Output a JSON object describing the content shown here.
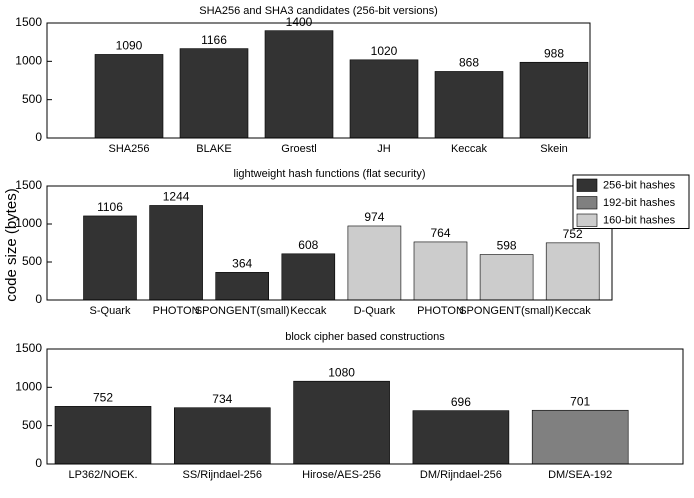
{
  "chart_data": [
    {
      "type": "bar",
      "title": "SHA256 and SHA3 candidates (256-bit versions)",
      "categories": [
        "SHA256",
        "BLAKE",
        "Groestl",
        "JH",
        "Keccak",
        "Skein"
      ],
      "values": [
        1090,
        1166,
        1400,
        1020,
        868,
        988
      ],
      "colors": [
        "#333333",
        "#333333",
        "#333333",
        "#333333",
        "#333333",
        "#333333"
      ],
      "ylim": [
        0,
        1500
      ],
      "yticks": [
        0,
        500,
        1000,
        1500
      ]
    },
    {
      "type": "grouped-bar",
      "title": "lightweight hash functions (flat security)",
      "ylabel": "code size (bytes)",
      "categories": [
        "S-Quark",
        "PHOTON",
        "SPONGENT(small)",
        "Keccak",
        "D-Quark",
        "PHOTON",
        "SPONGENT(small)",
        "Keccak"
      ],
      "series": [
        {
          "name": "256-bit hashes",
          "color": "#333333",
          "values": [
            1106,
            1244,
            364,
            608,
            null,
            null,
            null,
            null
          ]
        },
        {
          "name": "192-bit hashes",
          "color": "#808080",
          "values": [
            null,
            null,
            null,
            null,
            null,
            null,
            null,
            null
          ]
        },
        {
          "name": "160-bit hashes",
          "color": "#cccccc",
          "values": [
            null,
            null,
            null,
            null,
            974,
            764,
            598,
            752
          ]
        }
      ],
      "legend": "upper right",
      "ylim": [
        0,
        1500
      ],
      "yticks": [
        0,
        500,
        1000,
        1500
      ]
    },
    {
      "type": "bar",
      "title": "block cipher based constructions",
      "categories": [
        "LP362/NOEK.",
        "SS/Rijndael-256",
        "Hirose/AES-256",
        "DM/Rijndael-256",
        "DM/SEA-192"
      ],
      "values": [
        752,
        734,
        1080,
        696,
        701
      ],
      "colors": [
        "#333333",
        "#333333",
        "#333333",
        "#333333",
        "#808080"
      ],
      "ylim": [
        0,
        1500
      ],
      "yticks": [
        0,
        500,
        1000,
        1500
      ]
    }
  ]
}
